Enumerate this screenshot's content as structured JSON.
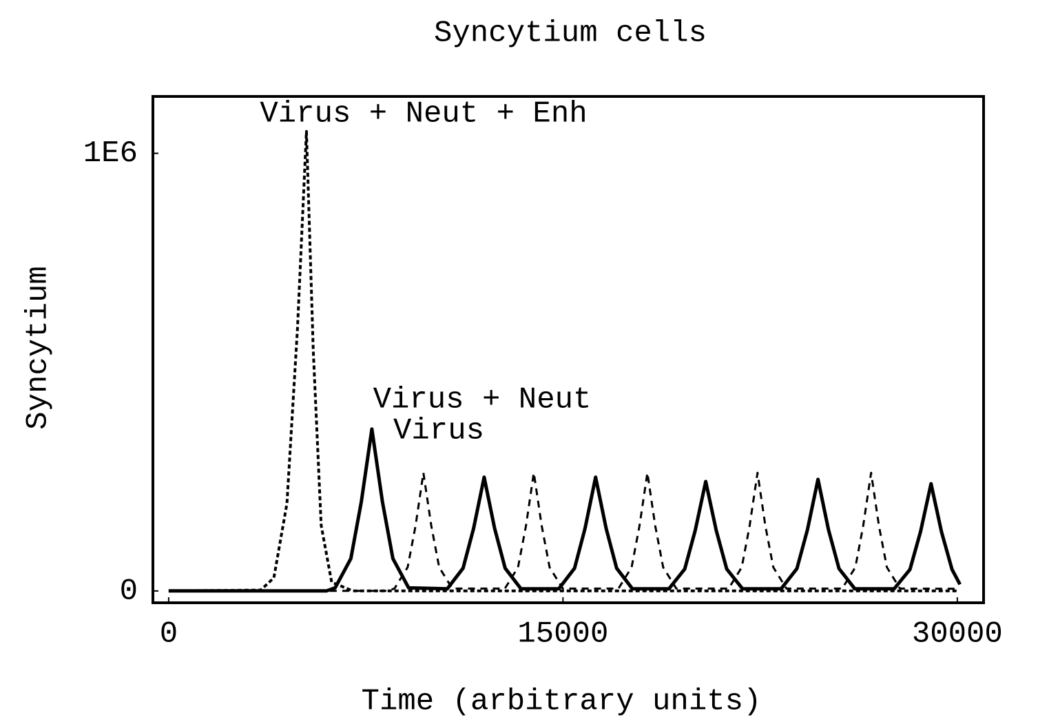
{
  "chart_data": {
    "type": "line",
    "title": "Syncytium cells",
    "x_label": "Time (arbitrary units)",
    "y_label": "Syncytium",
    "xlim": [
      -600,
      31000
    ],
    "ylim": [
      -27000,
      1130000
    ],
    "xticks": [
      0,
      15000,
      30000
    ],
    "yticks": [
      0,
      {
        "value": 1000000,
        "label": "1E6"
      }
    ],
    "series": [
      {
        "name": "Virus + Neut + Enh",
        "color": "#000000",
        "style": "dotted",
        "x": [
          0,
          3500,
          4000,
          4500,
          4900,
          5240,
          5500,
          5800,
          6200,
          7000,
          30000
        ],
        "values": [
          0,
          2000,
          30000,
          200000,
          600000,
          1050000,
          550000,
          150000,
          20000,
          0,
          0
        ]
      },
      {
        "name": "Virus + Neut",
        "color": "#000000",
        "style": "dashed",
        "x": [
          0,
          8300,
          8590,
          9090,
          9390,
          9690,
          9990,
          10290,
          10790,
          12790,
          13290,
          13590,
          13890,
          14190,
          14490,
          14990,
          17110,
          17610,
          17910,
          18210,
          18510,
          18810,
          19310,
          21300,
          21800,
          22100,
          22400,
          22700,
          23000,
          23500,
          25620,
          26120,
          26420,
          26720,
          27020,
          27320,
          27820,
          30000
        ],
        "values": [
          0,
          0,
          5400,
          54000,
          148500,
          270000,
          148500,
          54000,
          5400,
          5400,
          54000,
          148500,
          270000,
          148500,
          54000,
          5400,
          5400,
          54000,
          148500,
          270000,
          148500,
          54000,
          5400,
          5400,
          54000,
          148500,
          270000,
          148500,
          54000,
          5400,
          5400,
          54000,
          148500,
          270000,
          148500,
          54000,
          5400,
          5000
        ]
      },
      {
        "name": "Virus",
        "color": "#000000",
        "style": "solid",
        "x": [
          0,
          6000,
          6330,
          6930,
          7330,
          7730,
          8130,
          8530,
          9130,
          10600,
          11200,
          11600,
          12000,
          12400,
          12800,
          13400,
          14840,
          15440,
          15840,
          16240,
          16640,
          17040,
          17640,
          19030,
          19630,
          20030,
          20430,
          20830,
          21230,
          21830,
          23300,
          23900,
          24300,
          24700,
          25100,
          25500,
          26100,
          27600,
          28200,
          28600,
          29000,
          29400,
          29800,
          30100
        ],
        "values": [
          0,
          0,
          7000,
          74000,
          204000,
          370000,
          204000,
          74000,
          7000,
          5000,
          52000,
          143000,
          260000,
          143000,
          52000,
          5000,
          5000,
          52000,
          143000,
          260000,
          143000,
          52000,
          5000,
          5000,
          50000,
          138000,
          250000,
          138000,
          50000,
          5000,
          5000,
          51000,
          140000,
          255000,
          140000,
          51000,
          5000,
          5000,
          49000,
          135000,
          245000,
          135000,
          49000,
          15000
        ]
      }
    ]
  }
}
